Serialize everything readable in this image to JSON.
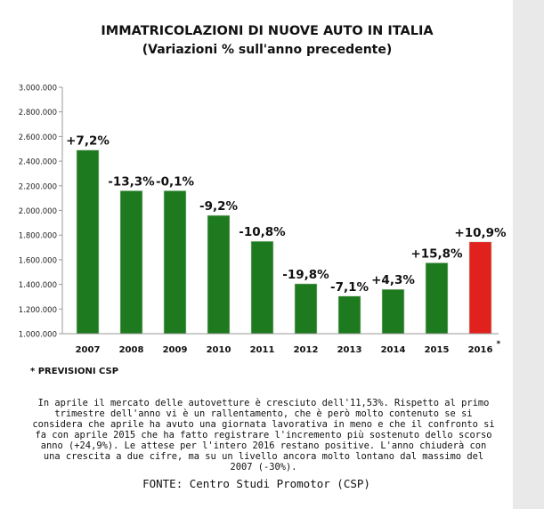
{
  "title": "IMMATRICOLAZIONI DI NUOVE AUTO IN ITALIA",
  "subtitle": "(Variazioni % sull'anno precedente)",
  "chart_data": {
    "type": "bar",
    "categories": [
      "2007",
      "2008",
      "2009",
      "2010",
      "2011",
      "2012",
      "2013",
      "2014",
      "2015",
      "2016"
    ],
    "values": [
      2490000,
      2160000,
      2160000,
      1960000,
      1750000,
      1405000,
      1305000,
      1360000,
      1575000,
      1745000
    ],
    "data_labels": [
      "+7,2%",
      "-13,3%",
      "-0,1%",
      "-9,2%",
      "-10,8%",
      "-19,8%",
      "-7,1%",
      "+4,3%",
      "+15,8%",
      "+10,9%"
    ],
    "bar_colors": [
      "#1e7a1e",
      "#1e7a1e",
      "#1e7a1e",
      "#1e7a1e",
      "#1e7a1e",
      "#1e7a1e",
      "#1e7a1e",
      "#1e7a1e",
      "#1e7a1e",
      "#e0211d"
    ],
    "highlight_marker": "*",
    "ylim": [
      1000000,
      3000000
    ],
    "yticks": [
      1000000,
      1200000,
      1400000,
      1600000,
      1800000,
      2000000,
      2200000,
      2400000,
      2600000,
      2800000,
      3000000
    ],
    "ytick_labels": [
      "1.000.000",
      "1.200.000",
      "1.400.000",
      "1.600.000",
      "1.800.000",
      "2.000.000",
      "2.200.000",
      "2.400.000",
      "2.600.000",
      "2.800.000",
      "3.000.000"
    ],
    "grid": false,
    "legend": "none"
  },
  "footnote": "* PREVISIONI CSP",
  "paragraph": "In aprile il mercato delle autovetture è cresciuto dell'11,53%. Rispetto al primo trimestre dell'anno vi è un rallentamento, che è però molto contenuto se si considera che aprile  ha avuto una giornata lavorativa in meno e che il confronto si fa con aprile 2015 che ha fatto registrare l'incremento più sostenuto dello scorso anno (+24,9%). Le attese per l'intero 2016 restano positive. L'anno chiuderà con una crescita a due cifre, ma su un livello ancora molto lontano dal massimo del 2007 (-30%).",
  "source": "FONTE: Centro Studi Promotor (CSP)"
}
